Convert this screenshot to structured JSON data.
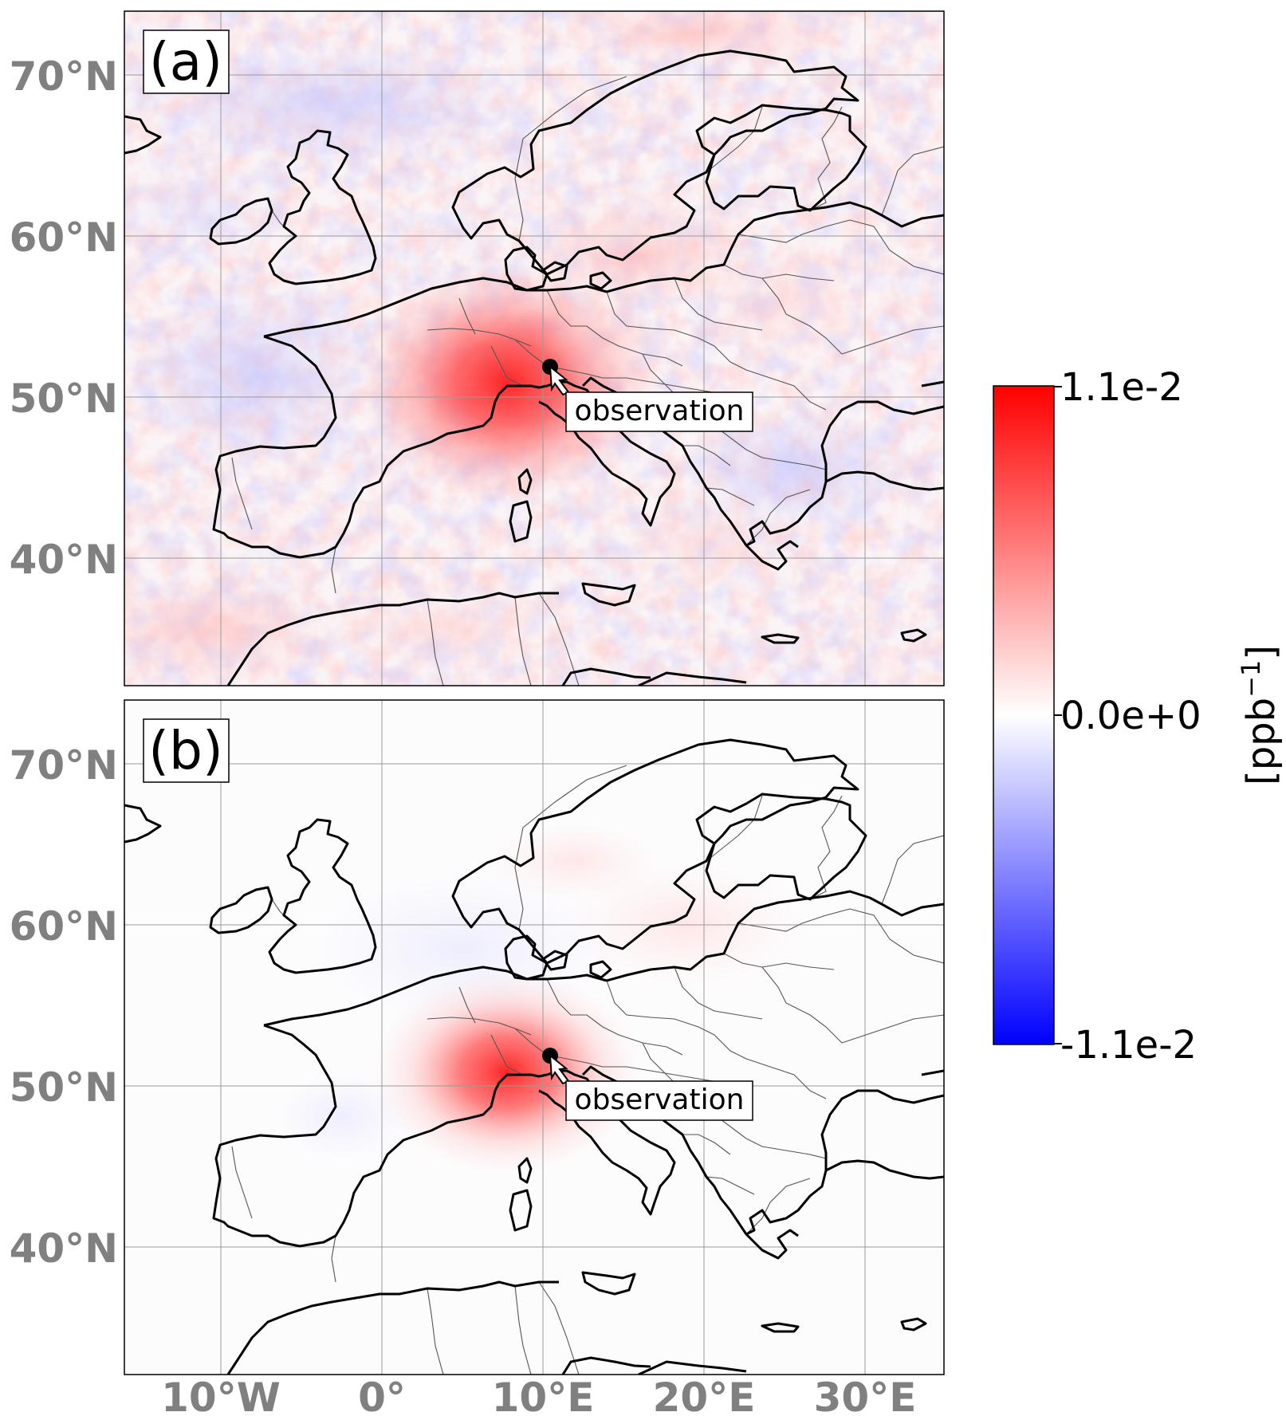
{
  "panels": [
    {
      "label": "(a)",
      "observation_label": "observation",
      "background": "noisy"
    },
    {
      "label": "(b)",
      "observation_label": "observation",
      "background": "smooth"
    }
  ],
  "lat_ticks": [
    "70°N",
    "60°N",
    "50°N",
    "40°N"
  ],
  "lon_ticks": [
    "10°W",
    "0°",
    "10°E",
    "20°E",
    "30°E"
  ],
  "colorbar": {
    "max_label": "1.1e-2",
    "mid_label": "0.0e+0",
    "min_label": "-1.1e-2",
    "unit_label": "[ppb",
    "unit_sup": "−1",
    "unit_close": "]",
    "colors": {
      "max": "#ff0000",
      "mid": "#ffffff",
      "min": "#0000ff"
    }
  },
  "tick_color": "#808080"
}
